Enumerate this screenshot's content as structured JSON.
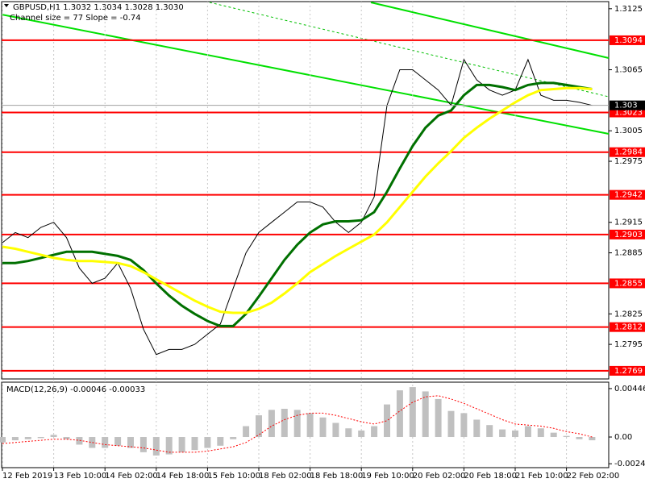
{
  "chart_data": [
    {
      "type": "line",
      "title": "GBPUSD,H1  1.3032 1.3034 1.3028 1.3030",
      "subtitle": "Channel size = 77 Slope = -0.74",
      "categories": [
        "12 Feb 2019",
        null,
        null,
        null,
        "13 Feb 10:00",
        null,
        null,
        null,
        "14 Feb 02:00",
        null,
        null,
        null,
        "14 Feb 18:00",
        null,
        null,
        null,
        "15 Feb 10:00",
        null,
        null,
        null,
        "18 Feb 02:00",
        null,
        null,
        null,
        "18 Feb 18:00",
        null,
        null,
        null,
        "19 Feb 10:00",
        null,
        null,
        null,
        "20 Feb 02:00",
        null,
        null,
        null,
        "20 Feb 18:00",
        null,
        null,
        null,
        "21 Feb 10:00",
        null,
        null,
        null,
        "22 Feb 02:00",
        null,
        null
      ],
      "series": [
        {
          "color": "#000000",
          "values": [
            1.2895,
            1.2905,
            1.29,
            1.291,
            1.2915,
            1.29,
            1.287,
            1.2855,
            1.286,
            1.2875,
            1.285,
            1.281,
            1.2785,
            1.279,
            1.279,
            1.2795,
            1.2805,
            1.2815,
            1.285,
            1.2885,
            1.2905,
            1.2915,
            1.2925,
            1.2935,
            1.2935,
            1.293,
            1.2915,
            1.2905,
            1.2915,
            1.294,
            1.303,
            1.3065,
            1.3065,
            1.3055,
            1.3045,
            1.303,
            1.3075,
            1.3055,
            1.3045,
            1.304,
            1.3045,
            1.3075,
            1.304,
            1.3035,
            1.3035,
            1.3033,
            1.303
          ]
        },
        {
          "color": "#007000",
          "values": [
            1.2875,
            1.2875,
            1.2877,
            1.288,
            1.2883,
            1.2886,
            1.2886,
            1.2886,
            1.2884,
            1.2882,
            1.2878,
            1.2868,
            1.2855,
            1.2843,
            1.2833,
            1.2825,
            1.2818,
            1.2813,
            1.2813,
            1.2825,
            1.2842,
            1.286,
            1.2878,
            1.2893,
            1.2905,
            1.2913,
            1.2916,
            1.2916,
            1.2917,
            1.2925,
            1.2945,
            1.2968,
            1.299,
            1.3008,
            1.302,
            1.3025,
            1.304,
            1.305,
            1.305,
            1.3048,
            1.3045,
            1.305,
            1.3052,
            1.3052,
            1.305,
            1.3048,
            1.3046
          ]
        },
        {
          "color": "#ffff00",
          "values": [
            1.2891,
            1.2889,
            1.2886,
            1.2883,
            1.288,
            1.2878,
            1.2877,
            1.2877,
            1.2876,
            1.2875,
            1.2872,
            1.2866,
            1.2859,
            1.2852,
            1.2845,
            1.2838,
            1.2832,
            1.2827,
            1.2826,
            1.2826,
            1.283,
            1.2836,
            1.2845,
            1.2855,
            1.2866,
            1.2874,
            1.2882,
            1.2889,
            1.2896,
            1.2903,
            1.2915,
            1.293,
            1.2945,
            1.296,
            1.2973,
            1.2985,
            1.2998,
            1.3008,
            1.3017,
            1.3025,
            1.3033,
            1.304,
            1.3045,
            1.3046,
            1.3047,
            1.3047,
            1.3046
          ]
        }
      ],
      "ylim": [
        1.2761,
        1.3132
      ],
      "yticks": [
        1.3125,
        1.3065,
        1.3005,
        1.2975,
        1.2915,
        1.2885,
        1.2825,
        1.2795
      ],
      "levels": [
        1.3094,
        1.3023,
        1.2984,
        1.2942,
        1.2903,
        1.2855,
        1.2812,
        1.2769
      ],
      "level_color": "#ff0000",
      "current_price": 1.303
    },
    {
      "type": "bar",
      "title": "MACD(12,26,9) -0.00046 -0.00033",
      "color": "#c0c0c0",
      "values": [
        -0.0005,
        -0.0003,
        -0.0002,
        -0.0001,
        0.0002,
        -0.0002,
        -0.0007,
        -0.001,
        -0.001,
        -0.0008,
        -0.001,
        -0.0014,
        -0.0017,
        -0.0016,
        -0.0014,
        -0.0012,
        -0.001,
        -0.0008,
        -0.0002,
        0.001,
        0.002,
        0.0025,
        0.0026,
        0.0025,
        0.0022,
        0.0018,
        0.0013,
        0.0008,
        0.0006,
        0.001,
        0.003,
        0.0043,
        0.0046,
        0.0042,
        0.0035,
        0.0024,
        0.0022,
        0.0016,
        0.0011,
        0.0007,
        0.0006,
        0.001,
        0.0008,
        0.0004,
        0.0001,
        -0.0002,
        -0.0003
      ],
      "series": [
        {
          "color": "#ff0000",
          "values": [
            -0.0006,
            -0.0005,
            -0.0004,
            -0.0003,
            -0.0002,
            -0.0002,
            -0.0003,
            -0.0005,
            -0.0007,
            -0.0008,
            -0.0009,
            -0.001,
            -0.0012,
            -0.0014,
            -0.0014,
            -0.0014,
            -0.0013,
            -0.0011,
            -0.0009,
            -0.0005,
            0.0002,
            0.001,
            0.0016,
            0.002,
            0.0022,
            0.0022,
            0.002,
            0.0017,
            0.0014,
            0.0012,
            0.0015,
            0.0024,
            0.0032,
            0.0037,
            0.0038,
            0.0035,
            0.0031,
            0.0026,
            0.0021,
            0.0016,
            0.0012,
            0.0011,
            0.001,
            0.0008,
            0.0005,
            0.0003,
            0
          ]
        }
      ],
      "ylim": [
        -0.00282,
        0.00505
      ],
      "yticks": [
        0.00446,
        {
          "value": 0,
          "label": "0.00"
        },
        -0.00246
      ]
    }
  ]
}
